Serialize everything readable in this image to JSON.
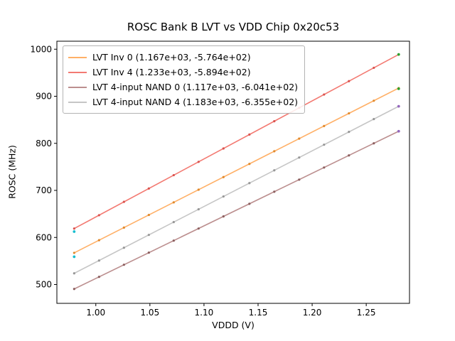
{
  "chart_data": {
    "type": "scatter",
    "title": "ROSC Bank B LVT vs VDD Chip 0x20c53",
    "xlabel": "VDDD (V)",
    "ylabel": "ROSC (MHz)",
    "xlim": [
      0.964,
      1.29
    ],
    "ylim": [
      460,
      1017
    ],
    "xticks": [
      1.0,
      1.05,
      1.1,
      1.15,
      1.2,
      1.25
    ],
    "yticks": [
      500,
      600,
      700,
      800,
      900,
      1000
    ],
    "grid": false,
    "legend_position": "upper left",
    "x": [
      0.98,
      1.003,
      1.026,
      1.049,
      1.072,
      1.095,
      1.118,
      1.142,
      1.165,
      1.188,
      1.211,
      1.234,
      1.257,
      1.28
    ],
    "series": [
      {
        "name": "LVT Inv 0 (1.167e+03, -5.764e+02)",
        "fit_slope": 1167.0,
        "fit_intercept": -576.4,
        "line_color": "#ffb067",
        "point_color": "#e08a2e",
        "values": [
          567.3,
          594.1,
          620.9,
          647.8,
          674.6,
          701.5,
          728.3,
          756.3,
          783.2,
          810.0,
          836.8,
          863.7,
          890.5,
          917.4
        ]
      },
      {
        "name": "LVT Inv 4 (1.233e+03, -5.894e+02)",
        "fit_slope": 1233.0,
        "fit_intercept": -589.4,
        "line_color": "#f37a72",
        "point_color": "#d9534f",
        "values": [
          618.9,
          647.3,
          675.7,
          704.0,
          732.4,
          760.7,
          789.1,
          818.7,
          847.0,
          875.4,
          903.7,
          932.1,
          960.5,
          988.8
        ]
      },
      {
        "name": "LVT 4-input NAND 0 (1.117e+03, -6.041e+02)",
        "fit_slope": 1117.0,
        "fit_intercept": -604.1,
        "line_color": "#bc8f8f",
        "point_color": "#8c5f5f",
        "values": [
          490.6,
          516.3,
          542.0,
          567.7,
          593.3,
          619.0,
          644.7,
          671.5,
          697.2,
          722.9,
          748.6,
          774.3,
          800.0,
          825.7
        ]
      },
      {
        "name": "LVT 4-input NAND 4 (1.183e+03, -6.355e+02)",
        "fit_slope": 1183.0,
        "fit_intercept": -635.5,
        "line_color": "#c6c6c6",
        "point_color": "#979797",
        "values": [
          523.8,
          551.0,
          578.2,
          605.4,
          632.6,
          659.9,
          687.1,
          715.5,
          742.7,
          769.9,
          797.1,
          824.3,
          851.5,
          878.7
        ]
      }
    ],
    "highlight_points": [
      {
        "x": 0.98,
        "y": 612.5,
        "color": "#17becf"
      },
      {
        "x": 0.98,
        "y": 559.0,
        "color": "#17becf"
      },
      {
        "x": 1.28,
        "y": 988.8,
        "color": "#2ca02c"
      },
      {
        "x": 1.28,
        "y": 916.0,
        "color": "#2ca02c"
      },
      {
        "x": 1.28,
        "y": 878.7,
        "color": "#9467bd"
      },
      {
        "x": 1.28,
        "y": 825.7,
        "color": "#9467bd"
      }
    ]
  }
}
